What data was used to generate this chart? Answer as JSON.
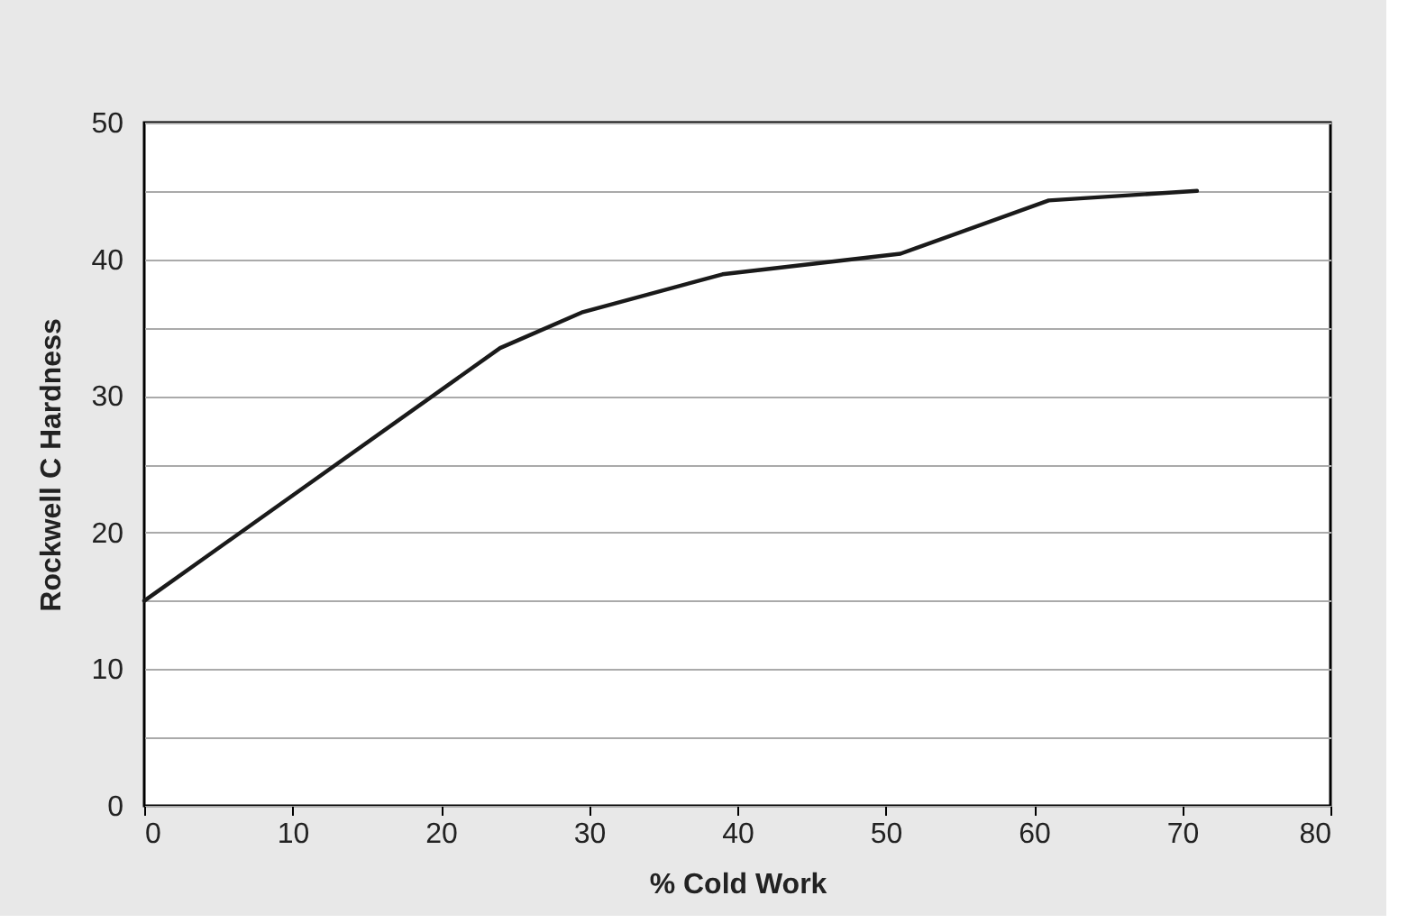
{
  "chart_data": {
    "type": "line",
    "xlabel": "% Cold Work",
    "ylabel": "Rockwell C Hardness",
    "x": [
      0,
      24,
      29.5,
      39,
      51,
      61,
      71
    ],
    "series": [
      {
        "color": "#1a1a1a",
        "values": [
          15,
          33.5,
          36.1,
          38.9,
          40.4,
          44.3,
          45
        ]
      }
    ],
    "xlim": [
      0,
      80
    ],
    "xticks": [
      0,
      10,
      20,
      30,
      40,
      50,
      60,
      70,
      80
    ],
    "ylim": [
      0,
      50
    ],
    "yticks": [
      0,
      {
        "value": 5,
        "label": null
      },
      10,
      {
        "value": 15,
        "label": null
      },
      20,
      {
        "value": 25,
        "label": null
      },
      30,
      {
        "value": 35,
        "label": null
      },
      40,
      {
        "value": 45,
        "label": null
      },
      50
    ],
    "grid": "y",
    "legend": false,
    "marker": "none",
    "line_style": "solid"
  }
}
